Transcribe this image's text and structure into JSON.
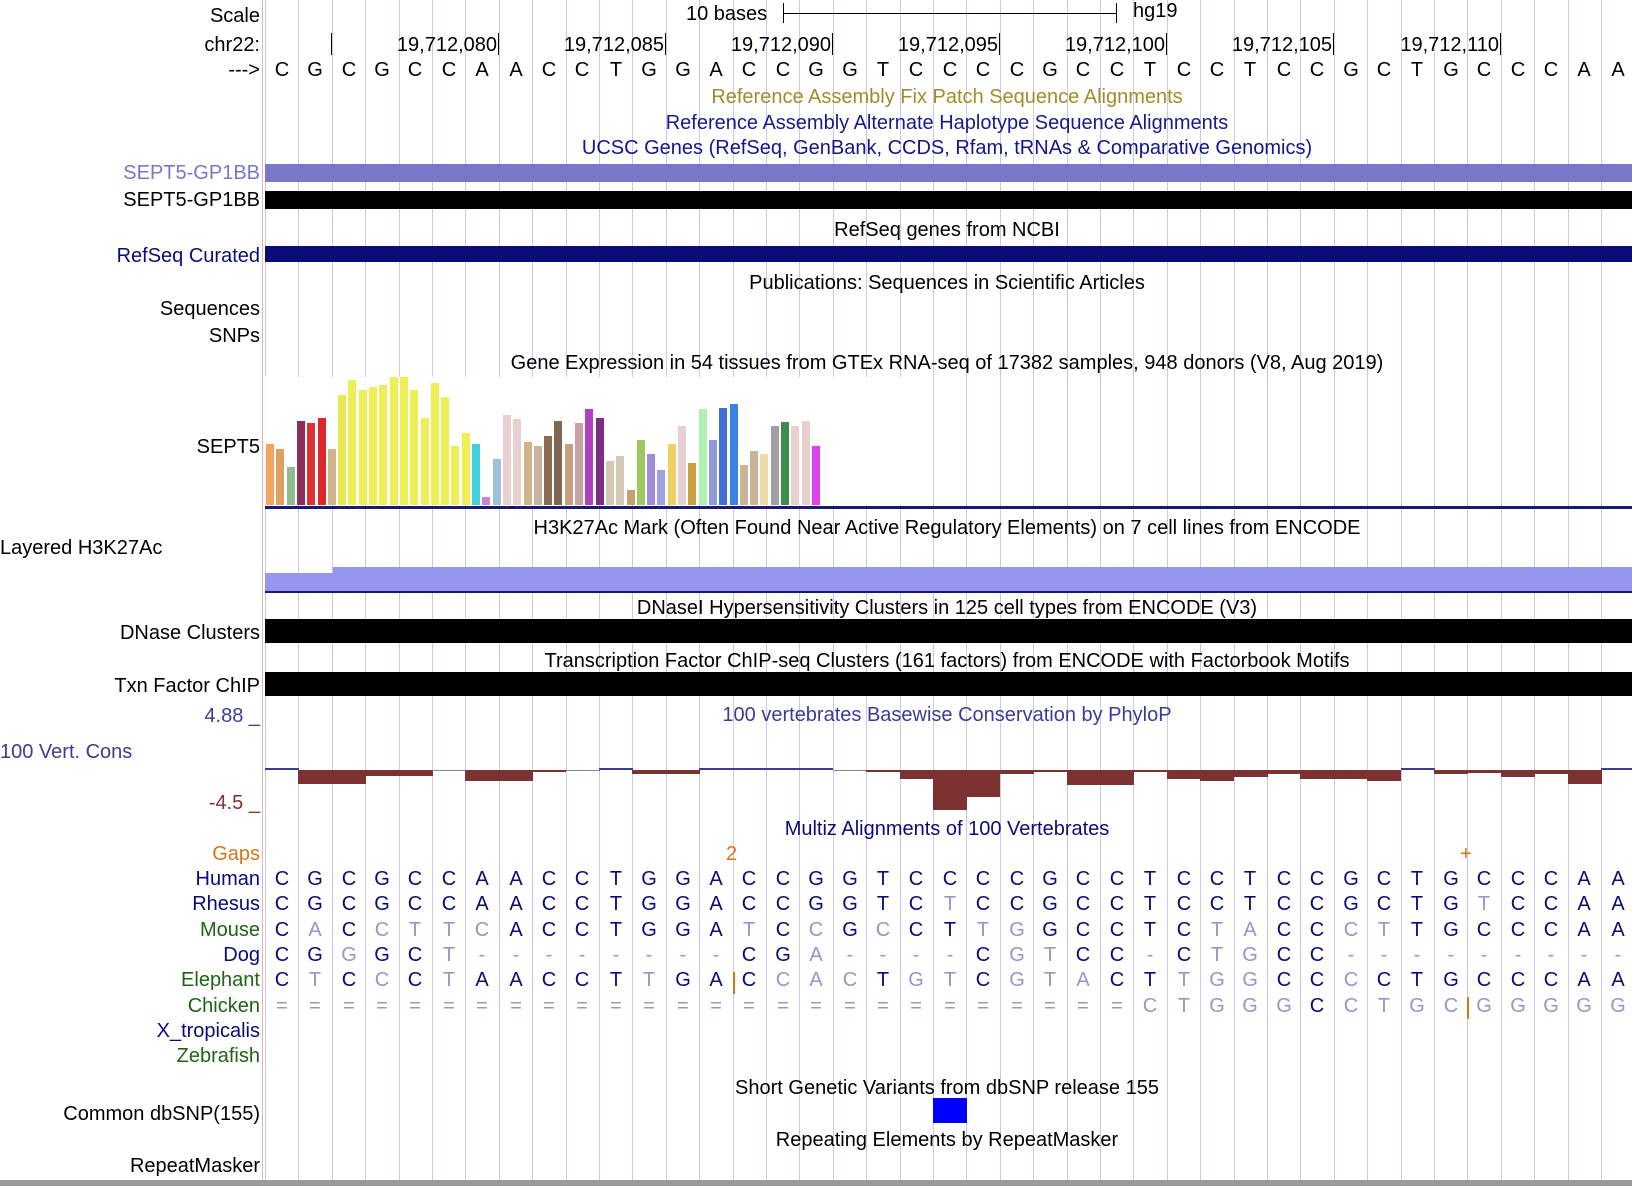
{
  "colors": {
    "black": "#000000",
    "navy": "#0c0c78",
    "periwinkle": "#7878c8",
    "patch_olive": "#a08c28",
    "alt_haplotype_navy": "#1a1a8c",
    "ucsc_genes_navy": "#14148c",
    "phylo_pos": "#3c3c96",
    "phylo_neg": "#7d3232",
    "gaps_orange": "#d27814",
    "mammal_navy": "#0a0a7a",
    "green_label": "#1e6414",
    "snp_blue": "#0000ff",
    "light_base": "#9696c8",
    "h3k27_fill": "#9696f0"
  },
  "header": {
    "scale_label": "Scale",
    "chrom_label": "chr22:",
    "strand_label": "--->",
    "scale_bar_label": "10 bases",
    "assembly": "hg19",
    "positions": [
      "19,712,080",
      "19,712,085",
      "19,712,090",
      "19,712,095",
      "19,712,100",
      "19,712,105",
      "19,712,110"
    ],
    "sequence": [
      "C",
      "G",
      "C",
      "G",
      "C",
      "C",
      "A",
      "A",
      "C",
      "C",
      "T",
      "G",
      "G",
      "A",
      "C",
      "C",
      "G",
      "G",
      "T",
      "C",
      "C",
      "C",
      "C",
      "G",
      "C",
      "C",
      "T",
      "C",
      "C",
      "T",
      "C",
      "C",
      "G",
      "C",
      "T",
      "G",
      "C",
      "C",
      "C",
      "A",
      "A"
    ]
  },
  "tracks": {
    "fix_patch": "Reference Assembly Fix Patch Sequence Alignments",
    "alt_haplotype": "Reference Assembly Alternate Haplotype Sequence Alignments",
    "ucsc_genes_title": "UCSC Genes (RefSeq, GenBank, CCDS, Rfam, tRNAs & Comparative Genomics)",
    "gene_label_1": "SEPT5-GP1BB",
    "gene_label_2": "SEPT5-GP1BB",
    "refseq_title": "RefSeq genes from NCBI",
    "refseq_label": "RefSeq Curated",
    "publications_title": "Publications: Sequences in Scientific Articles",
    "pub_sequences": "Sequences",
    "pub_snps": "SNPs",
    "gtex_title": "Gene Expression in 54 tissues from GTEx RNA-seq of 17382 samples, 948 donors (V8, Aug 2019)",
    "gtex_label": "SEPT5",
    "h3k27_title": "H3K27Ac Mark (Often Found Near Active Regulatory Elements) on 7 cell lines from ENCODE",
    "h3k27_label": "Layered H3K27Ac",
    "dnase_title": "DNaseI Hypersensitivity Clusters in 125 cell types from ENCODE (V3)",
    "dnase_label": "DNase Clusters",
    "txn_title": "Transcription Factor ChIP-seq Clusters (161 factors) from ENCODE with Factorbook Motifs",
    "txn_label": "Txn Factor ChIP",
    "phylop_title": "100 vertebrates Basewise Conservation by PhyloP",
    "phylop_label": "100 Vert. Cons",
    "phylop_max": "4.88 _",
    "phylop_min": "-4.5 _",
    "multiz_title": "Multiz Alignments of 100 Vertebrates",
    "gaps_label": "Gaps",
    "gap_marker_2": "2",
    "gap_marker_plus": "+",
    "dbsnp_title": "Short Genetic Variants from dbSNP release 155",
    "dbsnp_label": "Common dbSNP(155)",
    "rmsk_title": "Repeating Elements by RepeatMasker",
    "rmsk_label": "RepeatMasker"
  },
  "gtex_bars": [
    {
      "value": 0.48,
      "color": "#f4a460"
    },
    {
      "value": 0.44,
      "color": "#e0a060"
    },
    {
      "value": 0.3,
      "color": "#8fbc8f"
    },
    {
      "value": 0.66,
      "color": "#8b2e5a"
    },
    {
      "value": 0.64,
      "color": "#dc3232"
    },
    {
      "value": 0.68,
      "color": "#dc2828"
    },
    {
      "value": 0.44,
      "color": "#d2b48c"
    },
    {
      "value": 0.86,
      "color": "#e8e850"
    },
    {
      "value": 0.98,
      "color": "#eeee55"
    },
    {
      "value": 0.9,
      "color": "#eeee55"
    },
    {
      "value": 0.92,
      "color": "#eeee55"
    },
    {
      "value": 0.94,
      "color": "#eeee55"
    },
    {
      "value": 1.0,
      "color": "#eeee55"
    },
    {
      "value": 1.0,
      "color": "#eeee55"
    },
    {
      "value": 0.9,
      "color": "#eeee55"
    },
    {
      "value": 0.68,
      "color": "#eeee55"
    },
    {
      "value": 0.95,
      "color": "#eeee55"
    },
    {
      "value": 0.84,
      "color": "#eeee55"
    },
    {
      "value": 0.46,
      "color": "#eeee55"
    },
    {
      "value": 0.56,
      "color": "#eeee55"
    },
    {
      "value": 0.48,
      "color": "#40d0d8"
    },
    {
      "value": 0.06,
      "color": "#d080e0"
    },
    {
      "value": 0.36,
      "color": "#a0c0d8"
    },
    {
      "value": 0.7,
      "color": "#e8d0d0"
    },
    {
      "value": 0.67,
      "color": "#e8d0d0"
    },
    {
      "value": 0.49,
      "color": "#d2b48c"
    },
    {
      "value": 0.46,
      "color": "#c8b4a0"
    },
    {
      "value": 0.54,
      "color": "#8b6c50"
    },
    {
      "value": 0.66,
      "color": "#806850"
    },
    {
      "value": 0.48,
      "color": "#c8a080"
    },
    {
      "value": 0.64,
      "color": "#c8a0a0"
    },
    {
      "value": 0.75,
      "color": "#b040c0"
    },
    {
      "value": 0.68,
      "color": "#7c2e82"
    },
    {
      "value": 0.34,
      "color": "#d2c8b4"
    },
    {
      "value": 0.38,
      "color": "#d2c8b4"
    },
    {
      "value": 0.12,
      "color": "#c8a078"
    },
    {
      "value": 0.51,
      "color": "#a0c860"
    },
    {
      "value": 0.4,
      "color": "#a08cd8"
    },
    {
      "value": 0.27,
      "color": "#a0a0e0"
    },
    {
      "value": 0.48,
      "color": "#f0d060"
    },
    {
      "value": 0.62,
      "color": "#e8d0d0"
    },
    {
      "value": 0.33,
      "color": "#c8a040"
    },
    {
      "value": 0.75,
      "color": "#b0f0b0"
    },
    {
      "value": 0.51,
      "color": "#9098e0"
    },
    {
      "value": 0.76,
      "color": "#4070d8"
    },
    {
      "value": 0.79,
      "color": "#3c82e6"
    },
    {
      "value": 0.31,
      "color": "#c8b496"
    },
    {
      "value": 0.42,
      "color": "#c8b496"
    },
    {
      "value": 0.4,
      "color": "#f0d8a8"
    },
    {
      "value": 0.62,
      "color": "#a0a0a0"
    },
    {
      "value": 0.65,
      "color": "#3c8c50"
    },
    {
      "value": 0.62,
      "color": "#e8d0d0"
    },
    {
      "value": 0.66,
      "color": "#e8d0d0"
    },
    {
      "value": 0.46,
      "color": "#e040e8"
    }
  ],
  "phylop_values": [
    0.5,
    -1.6,
    -1.6,
    -0.7,
    -0.7,
    0.0,
    -1.2,
    -1.2,
    -0.1,
    0.0,
    0.4,
    -0.5,
    -0.5,
    0.1,
    0.2,
    0.2,
    0.4,
    0.0,
    -0.2,
    -1.0,
    -4.5,
    -3.0,
    -0.4,
    -0.2,
    -1.7,
    -1.7,
    -0.2,
    -1.0,
    -1.2,
    -0.8,
    -0.5,
    -1.0,
    -1.0,
    -1.2,
    0.3,
    -0.4,
    -0.3,
    -0.8,
    -0.5,
    -1.6,
    0.3
  ],
  "species": [
    {
      "name": "Human",
      "label_color": "#0a0a7a",
      "strong_color": "#0a0a7a",
      "bases": [
        "C",
        "G",
        "C",
        "G",
        "C",
        "C",
        "A",
        "A",
        "C",
        "C",
        "T",
        "G",
        "G",
        "A",
        "C",
        "C",
        "G",
        "G",
        "T",
        "C",
        "C",
        "C",
        "C",
        "G",
        "C",
        "C",
        "T",
        "C",
        "C",
        "T",
        "C",
        "C",
        "G",
        "C",
        "T",
        "G",
        "C",
        "C",
        "C",
        "A",
        "A"
      ],
      "light": []
    },
    {
      "name": "Rhesus",
      "label_color": "#0a0a7a",
      "strong_color": "#0a0a7a",
      "bases": [
        "C",
        "G",
        "C",
        "G",
        "C",
        "C",
        "A",
        "A",
        "C",
        "C",
        "T",
        "G",
        "G",
        "A",
        "C",
        "C",
        "G",
        "G",
        "T",
        "C",
        "T",
        "C",
        "C",
        "G",
        "C",
        "C",
        "T",
        "C",
        "C",
        "T",
        "C",
        "C",
        "G",
        "C",
        "T",
        "G",
        "T",
        "C",
        "C",
        "A",
        "A"
      ],
      "light": [
        20,
        36
      ]
    },
    {
      "name": "Mouse",
      "label_color": "#1e6414",
      "strong_color": "#0a0a7a",
      "bases": [
        "C",
        "A",
        "C",
        "C",
        "T",
        "T",
        "C",
        "A",
        "C",
        "C",
        "T",
        "G",
        "G",
        "A",
        "T",
        "C",
        "C",
        "G",
        "C",
        "C",
        "T",
        "T",
        "G",
        "G",
        "C",
        "C",
        "T",
        "C",
        "T",
        "A",
        "C",
        "C",
        "C",
        "T",
        "T",
        "G",
        "C",
        "C",
        "C",
        "A",
        "A"
      ],
      "light": [
        1,
        3,
        4,
        5,
        6,
        14,
        16,
        18,
        21,
        22,
        28,
        29,
        32,
        33
      ]
    },
    {
      "name": "Dog",
      "label_color": "#0a0a7a",
      "strong_color": "#0a0a7a",
      "bases": [
        "C",
        "G",
        "G",
        "G",
        "C",
        "T",
        "-",
        "-",
        "-",
        "-",
        "-",
        "-",
        "-",
        "-",
        "C",
        "G",
        "A",
        "-",
        "-",
        "-",
        "-",
        "C",
        "G",
        "T",
        "C",
        "C",
        "-",
        "C",
        "T",
        "G",
        "C",
        "C",
        "-",
        "-",
        "-",
        "-",
        "-",
        "-",
        "-",
        "-",
        "-"
      ],
      "light": [
        2,
        5,
        6,
        7,
        8,
        9,
        10,
        11,
        12,
        13,
        16,
        17,
        18,
        19,
        20,
        22,
        23,
        26,
        28,
        29,
        32,
        33,
        34,
        35,
        36,
        37,
        38,
        39,
        40
      ]
    },
    {
      "name": "Elephant",
      "label_color": "#1e6414",
      "strong_color": "#0a0a7a",
      "bases": [
        "C",
        "T",
        "C",
        "C",
        "C",
        "T",
        "A",
        "A",
        "C",
        "C",
        "T",
        "T",
        "G",
        "A",
        "C",
        "C",
        "A",
        "C",
        "T",
        "G",
        "T",
        "C",
        "G",
        "T",
        "A",
        "C",
        "T",
        "T",
        "G",
        "G",
        "C",
        "C",
        "C",
        "C",
        "T",
        "G",
        "C",
        "C",
        "C",
        "A",
        "A"
      ],
      "light": [
        1,
        3,
        5,
        11,
        15,
        16,
        17,
        19,
        20,
        22,
        23,
        24,
        27,
        28,
        29,
        32
      ]
    },
    {
      "name": "Chicken",
      "label_color": "#1e6414",
      "strong_color": "#0a0a7a",
      "bases": [
        "=",
        "=",
        "=",
        "=",
        "=",
        "=",
        "=",
        "=",
        "=",
        "=",
        "=",
        "=",
        "=",
        "=",
        "=",
        "=",
        "=",
        "=",
        "=",
        "=",
        "=",
        "=",
        "=",
        "=",
        "=",
        "=",
        "C",
        "T",
        "G",
        "G",
        "G",
        "C",
        "C",
        "T",
        "G",
        "C",
        "G",
        "G",
        "G",
        "G",
        "G"
      ],
      "light": [
        0,
        1,
        2,
        3,
        4,
        5,
        6,
        7,
        8,
        9,
        10,
        11,
        12,
        13,
        14,
        15,
        16,
        17,
        18,
        19,
        20,
        21,
        22,
        23,
        24,
        25,
        26,
        27,
        28,
        29,
        30,
        32,
        33,
        34,
        35,
        36,
        37,
        38,
        39,
        40
      ]
    },
    {
      "name": "X_tropicalis",
      "label_color": "#0a0a7a",
      "strong_color": "#0a0a7a",
      "bases": [],
      "light": []
    },
    {
      "name": "Zebrafish",
      "label_color": "#1e6414",
      "strong_color": "#0a0a7a",
      "bases": [],
      "light": []
    }
  ]
}
